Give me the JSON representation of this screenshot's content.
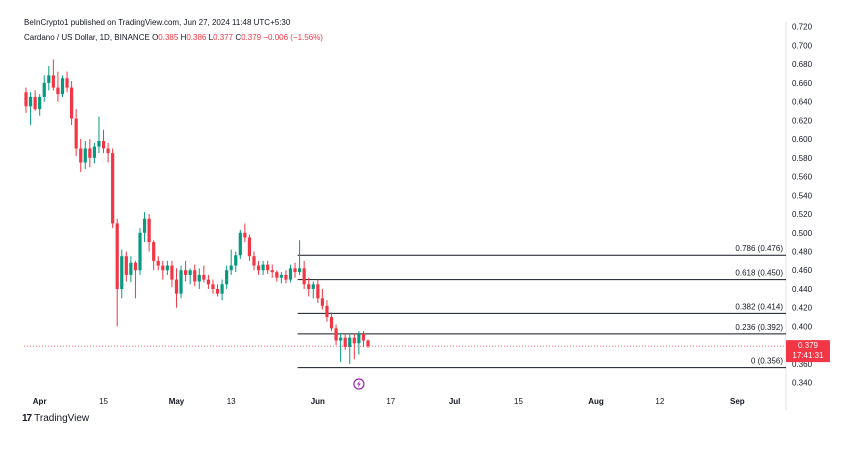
{
  "header": {
    "published_by": "BeInCrypto1 published on TradingView.com, Jun 27, 2024 11:48 UTC+5:30"
  },
  "legend": {
    "symbol": "Cardano / US Dollar, 1D, BINANCE",
    "open_label": "O",
    "open": "0.385",
    "high_label": "H",
    "high": "0.386",
    "low_label": "L",
    "low": "0.377",
    "close_label": "C",
    "close": "0.379",
    "change": "−0.006 (−1.56%)"
  },
  "footer": {
    "brand": "TradingView"
  },
  "chart_data": {
    "type": "candlestick",
    "y_axis": {
      "range": [
        0.33,
        0.725
      ],
      "ticks": [
        "0.340",
        "0.360",
        "0.380",
        "0.400",
        "0.420",
        "0.440",
        "0.460",
        "0.480",
        "0.500",
        "0.520",
        "0.540",
        "0.560",
        "0.580",
        "0.600",
        "0.620",
        "0.640",
        "0.660",
        "0.680",
        "0.700",
        "0.720"
      ],
      "current_price": "0.379",
      "countdown": "17:41:31"
    },
    "x_axis": {
      "labels": [
        "Apr",
        "15",
        "May",
        "13",
        "Jun",
        "17",
        "Jul",
        "15",
        "Aug",
        "12",
        "Sep"
      ],
      "bold_labels": [
        "Apr",
        "May",
        "Jun",
        "Jul",
        "Aug",
        "Sep"
      ],
      "label_days": [
        3,
        17,
        33,
        45,
        64,
        80,
        94,
        108,
        125,
        139,
        156
      ]
    },
    "colors": {
      "up": "#089981",
      "down": "#f23645",
      "fib": "#131722",
      "accent": "#f23645"
    },
    "fib_levels": [
      {
        "label": "0.786 (0.476)",
        "value": 0.476
      },
      {
        "label": "0.618 (0.450)",
        "value": 0.45
      },
      {
        "label": "0.382 (0.414)",
        "value": 0.414
      },
      {
        "label": "0.236 (0.392)",
        "value": 0.392
      },
      {
        "label": "0 (0.356)",
        "value": 0.356
      }
    ],
    "candles": [
      [
        0.65,
        0.655,
        0.628,
        0.635
      ],
      [
        0.635,
        0.65,
        0.615,
        0.645
      ],
      [
        0.645,
        0.652,
        0.63,
        0.632
      ],
      [
        0.632,
        0.648,
        0.625,
        0.645
      ],
      [
        0.645,
        0.668,
        0.64,
        0.66
      ],
      [
        0.66,
        0.678,
        0.652,
        0.668
      ],
      [
        0.668,
        0.685,
        0.652,
        0.655
      ],
      [
        0.655,
        0.672,
        0.64,
        0.648
      ],
      [
        0.648,
        0.668,
        0.645,
        0.665
      ],
      [
        0.665,
        0.672,
        0.65,
        0.655
      ],
      [
        0.655,
        0.662,
        0.615,
        0.622
      ],
      [
        0.622,
        0.632,
        0.582,
        0.59
      ],
      [
        0.59,
        0.6,
        0.565,
        0.575
      ],
      [
        0.575,
        0.598,
        0.568,
        0.59
      ],
      [
        0.59,
        0.6,
        0.57,
        0.58
      ],
      [
        0.58,
        0.596,
        0.574,
        0.592
      ],
      [
        0.592,
        0.624,
        0.585,
        0.598
      ],
      [
        0.598,
        0.61,
        0.585,
        0.59
      ],
      [
        0.59,
        0.596,
        0.575,
        0.585
      ],
      [
        0.585,
        0.59,
        0.505,
        0.51
      ],
      [
        0.51,
        0.515,
        0.4,
        0.44
      ],
      [
        0.44,
        0.482,
        0.43,
        0.475
      ],
      [
        0.475,
        0.48,
        0.448,
        0.455
      ],
      [
        0.455,
        0.475,
        0.447,
        0.468
      ],
      [
        0.468,
        0.47,
        0.43,
        0.46
      ],
      [
        0.46,
        0.505,
        0.455,
        0.5
      ],
      [
        0.5,
        0.522,
        0.49,
        0.515
      ],
      [
        0.515,
        0.52,
        0.48,
        0.49
      ],
      [
        0.49,
        0.492,
        0.46,
        0.47
      ],
      [
        0.47,
        0.475,
        0.46,
        0.465
      ],
      [
        0.465,
        0.47,
        0.45,
        0.46
      ],
      [
        0.46,
        0.47,
        0.455,
        0.465
      ],
      [
        0.465,
        0.47,
        0.442,
        0.45
      ],
      [
        0.45,
        0.462,
        0.42,
        0.435
      ],
      [
        0.435,
        0.465,
        0.43,
        0.46
      ],
      [
        0.46,
        0.47,
        0.448,
        0.455
      ],
      [
        0.455,
        0.462,
        0.445,
        0.46
      ],
      [
        0.46,
        0.466,
        0.443,
        0.448
      ],
      [
        0.448,
        0.462,
        0.44,
        0.455
      ],
      [
        0.455,
        0.465,
        0.447,
        0.45
      ],
      [
        0.45,
        0.455,
        0.44,
        0.445
      ],
      [
        0.445,
        0.45,
        0.435,
        0.44
      ],
      [
        0.44,
        0.445,
        0.432,
        0.435
      ],
      [
        0.435,
        0.45,
        0.428,
        0.445
      ],
      [
        0.445,
        0.465,
        0.44,
        0.46
      ],
      [
        0.46,
        0.482,
        0.455,
        0.465
      ],
      [
        0.465,
        0.48,
        0.458,
        0.476
      ],
      [
        0.476,
        0.503,
        0.472,
        0.5
      ],
      [
        0.5,
        0.51,
        0.49,
        0.495
      ],
      [
        0.495,
        0.498,
        0.47,
        0.475
      ],
      [
        0.475,
        0.48,
        0.46,
        0.465
      ],
      [
        0.465,
        0.47,
        0.455,
        0.46
      ],
      [
        0.46,
        0.47,
        0.455,
        0.466
      ],
      [
        0.466,
        0.47,
        0.456,
        0.46
      ],
      [
        0.46,
        0.466,
        0.452,
        0.458
      ],
      [
        0.458,
        0.46,
        0.448,
        0.452
      ],
      [
        0.452,
        0.458,
        0.446,
        0.455
      ],
      [
        0.455,
        0.46,
        0.446,
        0.45
      ],
      [
        0.45,
        0.466,
        0.447,
        0.462
      ],
      [
        0.462,
        0.468,
        0.452,
        0.458
      ],
      [
        0.458,
        0.492,
        0.455,
        0.462
      ],
      [
        0.462,
        0.47,
        0.44,
        0.445
      ],
      [
        0.445,
        0.452,
        0.432,
        0.44
      ],
      [
        0.44,
        0.448,
        0.43,
        0.445
      ],
      [
        0.445,
        0.45,
        0.425,
        0.43
      ],
      [
        0.43,
        0.44,
        0.418,
        0.422
      ],
      [
        0.422,
        0.428,
        0.405,
        0.41
      ],
      [
        0.41,
        0.415,
        0.395,
        0.398
      ],
      [
        0.398,
        0.402,
        0.38,
        0.385
      ],
      [
        0.385,
        0.393,
        0.362,
        0.388
      ],
      [
        0.388,
        0.392,
        0.375,
        0.378
      ],
      [
        0.378,
        0.393,
        0.36,
        0.388
      ],
      [
        0.388,
        0.392,
        0.365,
        0.382
      ],
      [
        0.382,
        0.395,
        0.37,
        0.392
      ],
      [
        0.392,
        0.395,
        0.378,
        0.385
      ],
      [
        0.385,
        0.386,
        0.377,
        0.379
      ]
    ]
  }
}
